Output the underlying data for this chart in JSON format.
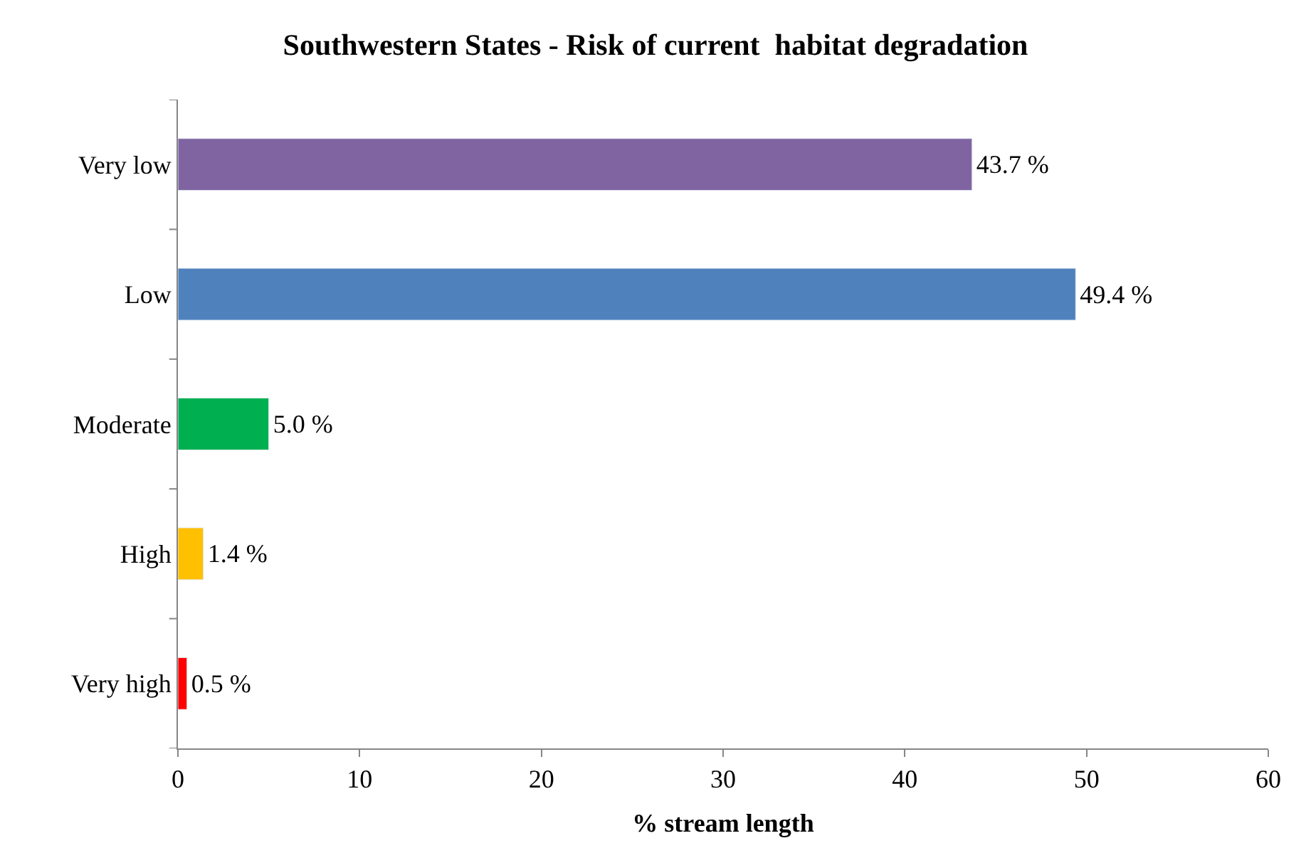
{
  "chart_data": {
    "type": "bar",
    "orientation": "horizontal",
    "title": "Southwestern States - Risk of current  habitat degradation",
    "xlabel": "% stream length",
    "categories": [
      "Very low",
      "Low",
      "Moderate",
      "High",
      "Very high"
    ],
    "values": [
      43.7,
      49.4,
      5.0,
      1.4,
      0.5
    ],
    "colors": [
      "#8064a2",
      "#4f81bd",
      "#00b050",
      "#ffc000",
      "#ff0000"
    ],
    "value_labels": [
      "43.7 %",
      "49.4 %",
      "5.0 %",
      "1.4 %",
      "0.5 %"
    ],
    "xlim": [
      0,
      60
    ],
    "xticks": [
      0,
      10,
      20,
      30,
      40,
      50,
      60
    ]
  }
}
